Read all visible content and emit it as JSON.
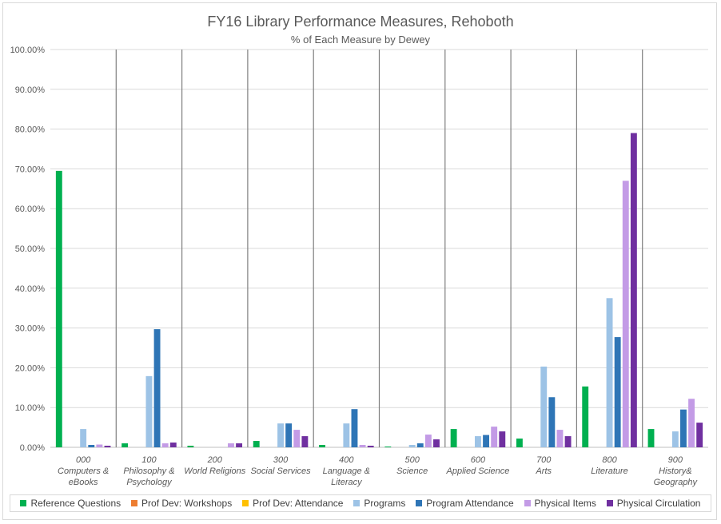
{
  "chart_data": {
    "type": "bar",
    "title": "FY16 Library Performance Measures, Rehoboth",
    "subtitle": "% of Each Measure by Dewey",
    "ylim": [
      0,
      100
    ],
    "yticks": [
      "0.00%",
      "10.00%",
      "20.00%",
      "30.00%",
      "40.00%",
      "50.00%",
      "60.00%",
      "70.00%",
      "80.00%",
      "90.00%",
      "100.00%"
    ],
    "categories": [
      {
        "code": "000",
        "name": "Computers & eBooks",
        "lines": [
          "000",
          "Computers &",
          "eBooks"
        ]
      },
      {
        "code": "100",
        "name": "Philosophy & Psychology",
        "lines": [
          "100",
          "Philosophy &",
          "Psychology"
        ]
      },
      {
        "code": "200",
        "name": "World Religions",
        "lines": [
          "200",
          "World Religions"
        ]
      },
      {
        "code": "300",
        "name": "Social Services",
        "lines": [
          "300",
          "Social Services"
        ]
      },
      {
        "code": "400",
        "name": "Language & Literacy",
        "lines": [
          "400",
          "Language &",
          "Literacy"
        ]
      },
      {
        "code": "500",
        "name": "Science",
        "lines": [
          "500",
          "Science"
        ]
      },
      {
        "code": "600",
        "name": "Applied Science",
        "lines": [
          "600",
          "Applied Science"
        ]
      },
      {
        "code": "700",
        "name": "Arts",
        "lines": [
          "700",
          "Arts"
        ]
      },
      {
        "code": "800",
        "name": "Literature",
        "lines": [
          "800",
          "Literature"
        ]
      },
      {
        "code": "900",
        "name": "History& Geography",
        "lines": [
          "900",
          "History&",
          "Geography"
        ]
      }
    ],
    "series": [
      {
        "name": "Reference Questions",
        "color": "#00b050",
        "values": [
          69.5,
          1.0,
          0.4,
          1.6,
          0.6,
          0.2,
          4.6,
          2.2,
          15.3,
          4.6
        ]
      },
      {
        "name": "Prof Dev: Workshops",
        "color": "#ed7d31",
        "values": [
          0,
          0,
          0,
          0,
          0,
          0,
          0,
          0,
          0,
          0
        ]
      },
      {
        "name": "Prof Dev: Attendance",
        "color": "#ffc000",
        "values": [
          0,
          0,
          0,
          0,
          0,
          0,
          0,
          0,
          0,
          0
        ]
      },
      {
        "name": "Programs",
        "color": "#9dc3e6",
        "values": [
          4.6,
          17.9,
          0,
          6.0,
          6.0,
          0.6,
          2.8,
          20.3,
          37.5,
          4.0
        ]
      },
      {
        "name": "Program Attendance",
        "color": "#2e75b6",
        "values": [
          0.6,
          29.7,
          0,
          6.0,
          9.6,
          1.0,
          3.1,
          12.6,
          27.7,
          9.5
        ]
      },
      {
        "name": "Physical Items",
        "color": "#c39be6",
        "values": [
          0.7,
          1.0,
          1.0,
          4.4,
          0.6,
          3.2,
          5.2,
          4.4,
          67.0,
          12.2
        ]
      },
      {
        "name": "Physical Circulation",
        "color": "#7030a0",
        "values": [
          0.4,
          1.2,
          1.0,
          2.8,
          0.4,
          2.0,
          4.0,
          2.8,
          79.0,
          6.2
        ]
      }
    ]
  }
}
